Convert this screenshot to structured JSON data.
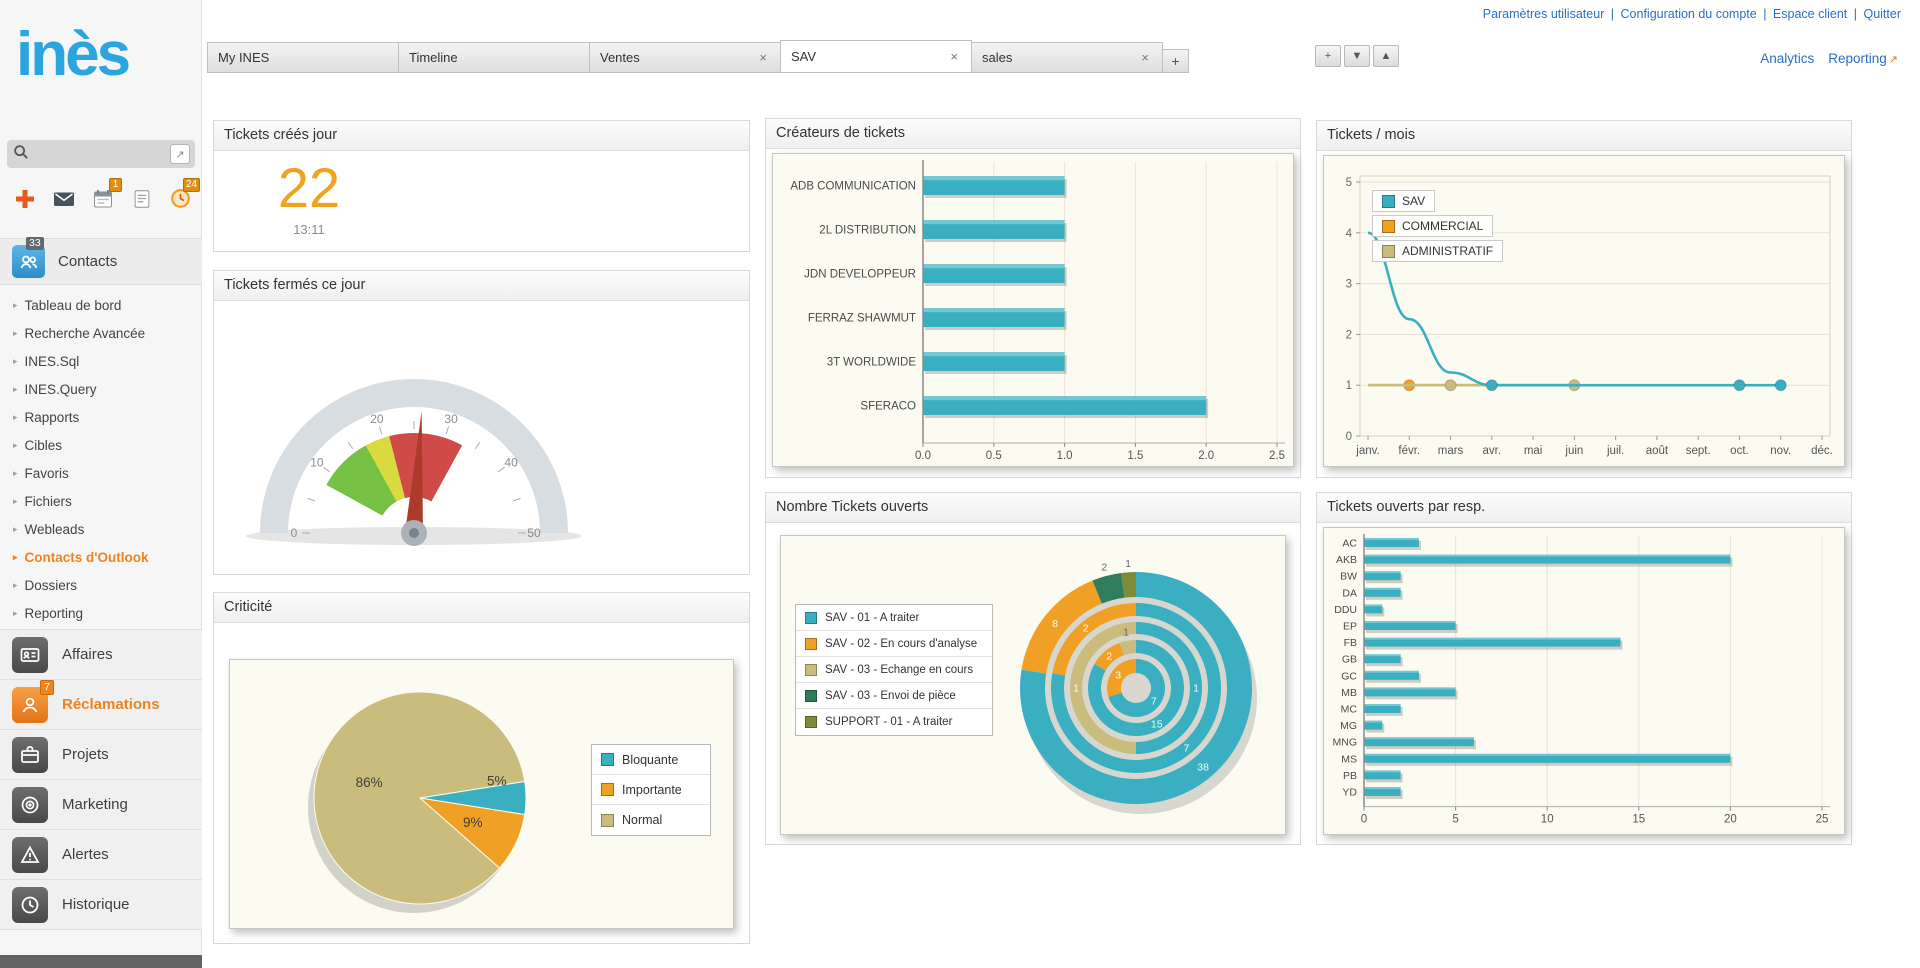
{
  "header": {
    "top_links": [
      "Paramètres utilisateur",
      "Configuration du compte",
      "Espace client",
      "Quitter"
    ],
    "separator": "|",
    "analytics": "Analytics",
    "reporting": "Reporting",
    "reporting_icon": "↗"
  },
  "tabs": {
    "items": [
      {
        "label": "My INES",
        "closable": false,
        "active": false
      },
      {
        "label": "Timeline",
        "closable": false,
        "active": false
      },
      {
        "label": "Ventes",
        "closable": true,
        "active": false
      },
      {
        "label": "SAV",
        "closable": true,
        "active": true
      },
      {
        "label": "sales",
        "closable": true,
        "active": false
      }
    ],
    "add_label": "+",
    "controls": [
      {
        "name": "tab-add-button",
        "glyph": "+"
      },
      {
        "name": "tab-scroll-down-button",
        "glyph": "▼"
      },
      {
        "name": "tab-scroll-up-button",
        "glyph": "▲"
      }
    ]
  },
  "sidebar": {
    "logo": "inès",
    "search_placeholder": "",
    "toolbar": [
      {
        "icon": "add-contact-icon",
        "badge": ""
      },
      {
        "icon": "mail-icon",
        "badge": ""
      },
      {
        "icon": "calendar-icon",
        "badge": "1"
      },
      {
        "icon": "notes-icon",
        "badge": ""
      },
      {
        "icon": "clock-icon",
        "badge": "24"
      }
    ],
    "contacts": {
      "label": "Contacts",
      "badge": "33"
    },
    "menu": [
      {
        "label": "Tableau de bord",
        "accent": false
      },
      {
        "label": "Recherche Avancée",
        "accent": false
      },
      {
        "label": "INES.Sql",
        "accent": false
      },
      {
        "label": "INES.Query",
        "accent": false
      },
      {
        "label": "Rapports",
        "accent": false
      },
      {
        "label": "Cibles",
        "accent": false
      },
      {
        "label": "Favoris",
        "accent": false
      },
      {
        "label": "Fichiers",
        "accent": false
      },
      {
        "label": "Webleads",
        "accent": false
      },
      {
        "label": "Contacts d'Outlook",
        "accent": true
      },
      {
        "label": "Dossiers",
        "accent": false
      },
      {
        "label": "Reporting",
        "accent": false
      }
    ],
    "sections": [
      {
        "label": "Affaires",
        "icon": "idcard-icon",
        "badge": "",
        "accent": false
      },
      {
        "label": "Réclamations",
        "icon": "claims-icon",
        "badge": "7",
        "accent": true
      },
      {
        "label": "Projets",
        "icon": "briefcase-icon",
        "badge": "",
        "accent": false
      },
      {
        "label": "Marketing",
        "icon": "target-icon",
        "badge": "",
        "accent": false
      },
      {
        "label": "Alertes",
        "icon": "warning-icon",
        "badge": "",
        "accent": false
      },
      {
        "label": "Historique",
        "icon": "history-icon",
        "badge": "",
        "accent": false
      }
    ]
  },
  "colors": {
    "teal": "#3AAFC1",
    "orange": "#F0A125",
    "tan": "#C9BC7D",
    "green": "#2F7D5B",
    "olive": "#7C8C3A",
    "link_blue": "#2A6FC2",
    "logo_blue": "#2BA5DE",
    "counter_orange": "#F2A31D"
  },
  "chart_data": [
    {
      "type": "counter",
      "title": "Tickets créés jour",
      "value": "22",
      "time": "13:11"
    },
    {
      "type": "gauge",
      "title": "Tickets fermés ce jour",
      "min": 0,
      "max": 50,
      "ticks": [
        "0",
        "10",
        "20",
        "30",
        "40",
        "50"
      ],
      "value": 26,
      "bands": [
        {
          "from": 8,
          "to": 17,
          "color": "#76C043"
        },
        {
          "from": 17,
          "to": 21,
          "color": "#D9DA3B"
        },
        {
          "from": 21,
          "to": 33,
          "color": "#CE4B47"
        }
      ]
    },
    {
      "type": "pie",
      "title": "Criticité",
      "start_angle": -9,
      "slices": [
        {
          "label": "Bloquante",
          "value": 5,
          "color": "#3AAFC1",
          "pct_label": "5%"
        },
        {
          "label": "Importante",
          "value": 9,
          "color": "#F0A125",
          "pct_label": "9%"
        },
        {
          "label": "Normal",
          "value": 86,
          "color": "#C9BC7D",
          "pct_label": "86%"
        }
      ]
    },
    {
      "type": "barh",
      "title": "Créateurs de tickets",
      "categories": [
        "ADB COMMUNICATION",
        "2L DISTRIBUTION",
        "JDN DEVELOPPEUR",
        "FERRAZ SHAWMUT",
        "3T WORLDWIDE",
        "SFERACO"
      ],
      "values": [
        1,
        1,
        1,
        1,
        1,
        2
      ],
      "xlim": [
        0,
        2.5
      ],
      "xticks": [
        "0.0",
        "0.5",
        "1.0",
        "1.5",
        "2.0",
        "2.5"
      ],
      "bar_color": "#3AAFC1"
    },
    {
      "type": "rings",
      "title": "Nombre Tickets ouverts",
      "legend": [
        {
          "label": "SAV - 01 - A traiter",
          "color": "#3AAFC1"
        },
        {
          "label": "SAV - 02 - En cours d'analyse",
          "color": "#F0A125"
        },
        {
          "label": "SAV - 03 - Echange en cours",
          "color": "#C9BC7D"
        },
        {
          "label": "SAV - 03 - Envoi de pièce",
          "color": "#2F7D5B"
        },
        {
          "label": "SUPPORT - 01 - A traiter",
          "color": "#7C8C3A"
        }
      ],
      "rings": [
        {
          "segments": [
            {
              "value": 7,
              "color": "#3AAFC1",
              "label": "7"
            },
            {
              "value": 3,
              "color": "#F0A125",
              "label": "3"
            }
          ]
        },
        {
          "segments": [
            {
              "value": 15,
              "color": "#3AAFC1",
              "label": "15"
            },
            {
              "value": 2,
              "color": "#F0A125",
              "label": "2"
            },
            {
              "value": 1,
              "color": "#C9BC7D",
              "label": "1"
            }
          ]
        },
        {
          "segments": [
            {
              "value": 1,
              "color": "#3AAFC1",
              "label": "1"
            },
            {
              "value": 1,
              "color": "#C9BC7D",
              "label": "1"
            }
          ]
        },
        {
          "segments": [
            {
              "value": 7,
              "color": "#3AAFC1",
              "label": "7"
            },
            {
              "value": 2,
              "color": "#F0A125",
              "label": "2"
            }
          ]
        },
        {
          "segments": [
            {
              "value": 38,
              "color": "#3AAFC1",
              "label": "38"
            },
            {
              "value": 8,
              "color": "#F0A125",
              "label": "8"
            },
            {
              "value": 2,
              "color": "#2F7D5B",
              "label": "2"
            },
            {
              "value": 1,
              "color": "#7C8C3A",
              "label": "1"
            }
          ]
        }
      ]
    },
    {
      "type": "line",
      "title": "Tickets / mois",
      "x_labels": [
        "janv.",
        "févr.",
        "mars",
        "avr.",
        "mai",
        "juin",
        "juil.",
        "août",
        "sept.",
        "oct.",
        "nov.",
        "déc."
      ],
      "ylim": [
        0,
        5
      ],
      "yticks": [
        "0",
        "1",
        "2",
        "3",
        "4",
        "5"
      ],
      "legend": [
        {
          "label": "SAV",
          "color": "#3AAFC1"
        },
        {
          "label": "COMMERCIAL",
          "color": "#F0A125"
        },
        {
          "label": "ADMINISTRATIF",
          "color": "#C9BC7D"
        }
      ],
      "series": [
        {
          "name": "COMMERCIAL",
          "color": "#F0A125",
          "values": [
            1,
            1,
            1,
            1,
            1,
            1,
            null,
            null,
            null,
            null,
            null,
            null
          ],
          "markers": [
            1
          ]
        },
        {
          "name": "ADMINISTRATIF",
          "color": "#C9BC7D",
          "values": [
            1,
            1,
            1,
            1,
            1,
            1,
            null,
            null,
            null,
            null,
            null,
            null
          ],
          "markers": [
            2,
            5
          ]
        },
        {
          "name": "SAV",
          "color": "#3AAFC1",
          "values": [
            4,
            2.3,
            1.25,
            1,
            1,
            1,
            1,
            1,
            1,
            1,
            1,
            null
          ],
          "markers": [
            3,
            9,
            10
          ]
        }
      ]
    },
    {
      "type": "barh",
      "title": "Tickets ouverts par resp.",
      "categories": [
        "AC",
        "AKB",
        "BW",
        "DA",
        "DDU",
        "EP",
        "FB",
        "GB",
        "GC",
        "MB",
        "MC",
        "MG",
        "MNG",
        "MS",
        "PB",
        "YD"
      ],
      "values": [
        3,
        20,
        2,
        2,
        1,
        5,
        14,
        2,
        3,
        5,
        2,
        1,
        6,
        20,
        2,
        2
      ],
      "xlim": [
        0,
        25
      ],
      "xticks": [
        "0",
        "5",
        "10",
        "15",
        "20",
        "25"
      ],
      "bar_color": "#3AAFC1"
    }
  ]
}
